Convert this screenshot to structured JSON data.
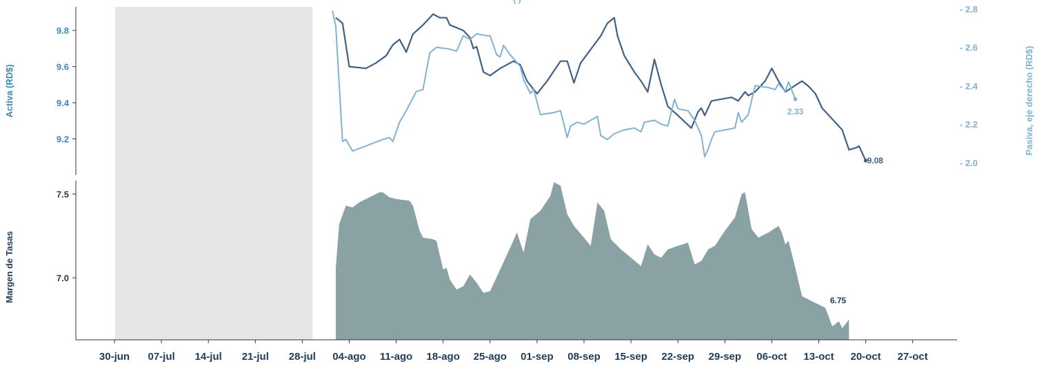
{
  "chart_data": {
    "type": "line",
    "top_title": "(                                                       )",
    "colors": {
      "activa": "#3e5f86",
      "pasiva": "#7fb2d3",
      "margen": "#8aa2a4",
      "shade": "#e6e6e6",
      "left_axis": "#3a88b8",
      "right_axis": "#7fb2d3",
      "x_text": "#1f3b5a"
    },
    "x_ticks": [
      "30-jun",
      "07-jul",
      "14-jul",
      "21-jul",
      "28-jul",
      "04-ago",
      "11-ago",
      "18-ago",
      "25-ago",
      "01-sep",
      "08-sep",
      "15-sep",
      "22-sep",
      "29-sep",
      "06-oct",
      "13-oct",
      "20-oct",
      "27-oct"
    ],
    "shaded_range": {
      "from": "30-jun",
      "to": "28-jul"
    },
    "top_panel": {
      "left_axis_label": "Activa (RD$)",
      "right_axis_label": "Pasiva, eje derecho (RD$)",
      "left_ylim": [
        9.0,
        9.93
      ],
      "left_ticks": [
        "9.2",
        "9.4",
        "9.6",
        "9.8"
      ],
      "right_ylim": [
        1.935,
        2.81
      ],
      "right_ticks": [
        "2.0",
        "2.2",
        "2.4",
        "2.6",
        "2.8"
      ],
      "series": [
        {
          "name": "Activa",
          "axis": "left",
          "end_label": "9.08",
          "points": [
            [
              33.0,
              9.87
            ],
            [
              34.0,
              9.84
            ],
            [
              35.0,
              9.6
            ],
            [
              37.5,
              9.59
            ],
            [
              39.0,
              9.62
            ],
            [
              40.5,
              9.66
            ],
            [
              41.5,
              9.72
            ],
            [
              42.5,
              9.75
            ],
            [
              43.5,
              9.68
            ],
            [
              44.5,
              9.78
            ],
            [
              46.0,
              9.83
            ],
            [
              47.5,
              9.89
            ],
            [
              48.5,
              9.87
            ],
            [
              49.5,
              9.87
            ],
            [
              50.0,
              9.83
            ],
            [
              52.0,
              9.8
            ],
            [
              53.0,
              9.76
            ],
            [
              53.5,
              9.7
            ],
            [
              54.0,
              9.71
            ],
            [
              55.0,
              9.57
            ],
            [
              56.0,
              9.55
            ],
            [
              57.5,
              9.59
            ],
            [
              59.5,
              9.63
            ],
            [
              60.5,
              9.61
            ],
            [
              61.5,
              9.52
            ],
            [
              63.0,
              9.45
            ],
            [
              64.5,
              9.52
            ],
            [
              66.5,
              9.63
            ],
            [
              67.5,
              9.63
            ],
            [
              68.5,
              9.51
            ],
            [
              69.5,
              9.62
            ],
            [
              70.5,
              9.67
            ],
            [
              71.5,
              9.72
            ],
            [
              72.5,
              9.77
            ],
            [
              73.5,
              9.84
            ],
            [
              74.5,
              9.87
            ],
            [
              75.0,
              9.77
            ],
            [
              76.0,
              9.66
            ],
            [
              77.5,
              9.57
            ],
            [
              78.5,
              9.52
            ],
            [
              79.5,
              9.46
            ],
            [
              80.5,
              9.64
            ],
            [
              81.5,
              9.5
            ],
            [
              82.5,
              9.38
            ],
            [
              84.0,
              9.33
            ],
            [
              86.0,
              9.26
            ],
            [
              87.0,
              9.35
            ],
            [
              87.5,
              9.37
            ],
            [
              88.0,
              9.33
            ],
            [
              89.0,
              9.41
            ],
            [
              90.5,
              9.42
            ],
            [
              92.0,
              9.43
            ],
            [
              93.0,
              9.41
            ],
            [
              94.0,
              9.46
            ],
            [
              94.5,
              9.44
            ],
            [
              95.5,
              9.46
            ],
            [
              97.0,
              9.52
            ],
            [
              98.0,
              9.59
            ],
            [
              99.0,
              9.52
            ],
            [
              100.0,
              9.46
            ],
            [
              102.5,
              9.52
            ],
            [
              103.5,
              9.49
            ],
            [
              104.5,
              9.45
            ],
            [
              105.5,
              9.37
            ],
            [
              107.0,
              9.31
            ],
            [
              108.5,
              9.25
            ],
            [
              109.5,
              9.14
            ],
            [
              110.5,
              9.15
            ],
            [
              111.0,
              9.16
            ],
            [
              112.0,
              9.08
            ]
          ]
        },
        {
          "name": "Pasiva",
          "axis": "right",
          "end_label": "2.33",
          "points": [
            [
              32.5,
              2.79
            ],
            [
              33.0,
              2.71
            ],
            [
              34.0,
              2.11
            ],
            [
              34.5,
              2.12
            ],
            [
              35.5,
              2.06
            ],
            [
              37.0,
              2.08
            ],
            [
              38.5,
              2.1
            ],
            [
              40.0,
              2.12
            ],
            [
              41.0,
              2.13
            ],
            [
              41.5,
              2.11
            ],
            [
              42.5,
              2.21
            ],
            [
              43.5,
              2.27
            ],
            [
              45.0,
              2.37
            ],
            [
              46.0,
              2.38
            ],
            [
              47.0,
              2.57
            ],
            [
              48.0,
              2.6
            ],
            [
              50.0,
              2.59
            ],
            [
              51.0,
              2.58
            ],
            [
              52.0,
              2.66
            ],
            [
              53.0,
              2.64
            ],
            [
              54.0,
              2.67
            ],
            [
              55.5,
              2.66
            ],
            [
              56.0,
              2.66
            ],
            [
              57.0,
              2.56
            ],
            [
              57.5,
              2.55
            ],
            [
              58.0,
              2.61
            ],
            [
              59.0,
              2.56
            ],
            [
              60.5,
              2.5
            ],
            [
              61.0,
              2.43
            ],
            [
              62.0,
              2.36
            ],
            [
              62.5,
              2.38
            ],
            [
              63.5,
              2.25
            ],
            [
              65.5,
              2.26
            ],
            [
              66.5,
              2.27
            ],
            [
              67.5,
              2.13
            ],
            [
              68.0,
              2.19
            ],
            [
              69.0,
              2.21
            ],
            [
              70.0,
              2.2
            ],
            [
              71.0,
              2.22
            ],
            [
              72.0,
              2.24
            ],
            [
              72.5,
              2.14
            ],
            [
              73.5,
              2.12
            ],
            [
              74.5,
              2.15
            ],
            [
              76.0,
              2.17
            ],
            [
              77.5,
              2.18
            ],
            [
              78.5,
              2.16
            ],
            [
              79.0,
              2.21
            ],
            [
              80.5,
              2.22
            ],
            [
              81.5,
              2.2
            ],
            [
              82.5,
              2.19
            ],
            [
              83.5,
              2.33
            ],
            [
              84.0,
              2.28
            ],
            [
              85.5,
              2.27
            ],
            [
              86.5,
              2.22
            ],
            [
              87.5,
              2.14
            ],
            [
              88.0,
              2.03
            ],
            [
              88.5,
              2.07
            ],
            [
              89.0,
              2.12
            ],
            [
              89.5,
              2.16
            ],
            [
              91.0,
              2.17
            ],
            [
              92.5,
              2.18
            ],
            [
              93.0,
              2.26
            ],
            [
              93.5,
              2.21
            ],
            [
              94.5,
              2.25
            ],
            [
              95.5,
              2.4
            ],
            [
              97.5,
              2.39
            ],
            [
              98.5,
              2.38
            ],
            [
              99.0,
              2.41
            ],
            [
              100.0,
              2.37
            ],
            [
              100.5,
              2.42
            ],
            [
              101.5,
              2.33
            ]
          ]
        }
      ]
    },
    "bottom_panel": {
      "left_axis_label": "Margen de Tasas",
      "ylim": [
        6.63,
        7.58
      ],
      "ticks": [
        "7.0",
        "7.5"
      ],
      "series": [
        {
          "name": "Margen",
          "type": "area",
          "end_label": "6.75",
          "points": [
            [
              33.0,
              7.06
            ],
            [
              33.5,
              7.32
            ],
            [
              34.5,
              7.43
            ],
            [
              35.5,
              7.42
            ],
            [
              36.5,
              7.45
            ],
            [
              38.0,
              7.48
            ],
            [
              39.5,
              7.51
            ],
            [
              40.0,
              7.51
            ],
            [
              41.0,
              7.48
            ],
            [
              42.0,
              7.47
            ],
            [
              44.0,
              7.46
            ],
            [
              44.5,
              7.43
            ],
            [
              45.5,
              7.28
            ],
            [
              46.0,
              7.24
            ],
            [
              47.5,
              7.23
            ],
            [
              48.0,
              7.22
            ],
            [
              49.0,
              7.05
            ],
            [
              49.5,
              7.06
            ],
            [
              50.0,
              6.99
            ],
            [
              51.0,
              6.93
            ],
            [
              52.0,
              6.95
            ],
            [
              53.0,
              7.02
            ],
            [
              54.0,
              6.97
            ],
            [
              55.0,
              6.91
            ],
            [
              56.0,
              6.92
            ],
            [
              57.5,
              7.05
            ],
            [
              59.0,
              7.18
            ],
            [
              60.0,
              7.27
            ],
            [
              61.0,
              7.15
            ],
            [
              62.0,
              7.35
            ],
            [
              63.5,
              7.4
            ],
            [
              65.0,
              7.49
            ],
            [
              65.5,
              7.57
            ],
            [
              66.5,
              7.55
            ],
            [
              67.5,
              7.38
            ],
            [
              68.5,
              7.31
            ],
            [
              70.0,
              7.24
            ],
            [
              71.0,
              7.19
            ],
            [
              72.0,
              7.45
            ],
            [
              73.0,
              7.4
            ],
            [
              74.0,
              7.23
            ],
            [
              75.5,
              7.17
            ],
            [
              77.0,
              7.12
            ],
            [
              78.5,
              7.07
            ],
            [
              79.5,
              7.2
            ],
            [
              80.5,
              7.14
            ],
            [
              81.5,
              7.12
            ],
            [
              82.5,
              7.17
            ],
            [
              84.0,
              7.19
            ],
            [
              85.5,
              7.21
            ],
            [
              86.5,
              7.08
            ],
            [
              87.5,
              7.1
            ],
            [
              88.5,
              7.17
            ],
            [
              89.5,
              7.19
            ],
            [
              91.0,
              7.28
            ],
            [
              92.5,
              7.36
            ],
            [
              93.5,
              7.5
            ],
            [
              94.0,
              7.51
            ],
            [
              95.0,
              7.29
            ],
            [
              96.0,
              7.24
            ],
            [
              97.5,
              7.27
            ],
            [
              99.0,
              7.31
            ],
            [
              99.5,
              7.27
            ],
            [
              100.0,
              7.2
            ],
            [
              100.5,
              7.22
            ],
            [
              101.5,
              7.06
            ],
            [
              102.5,
              6.89
            ],
            [
              104.0,
              6.86
            ],
            [
              105.0,
              6.84
            ],
            [
              106.0,
              6.82
            ],
            [
              107.0,
              6.71
            ],
            [
              108.0,
              6.74
            ],
            [
              108.5,
              6.7
            ],
            [
              109.5,
              6.75
            ]
          ]
        }
      ]
    }
  }
}
